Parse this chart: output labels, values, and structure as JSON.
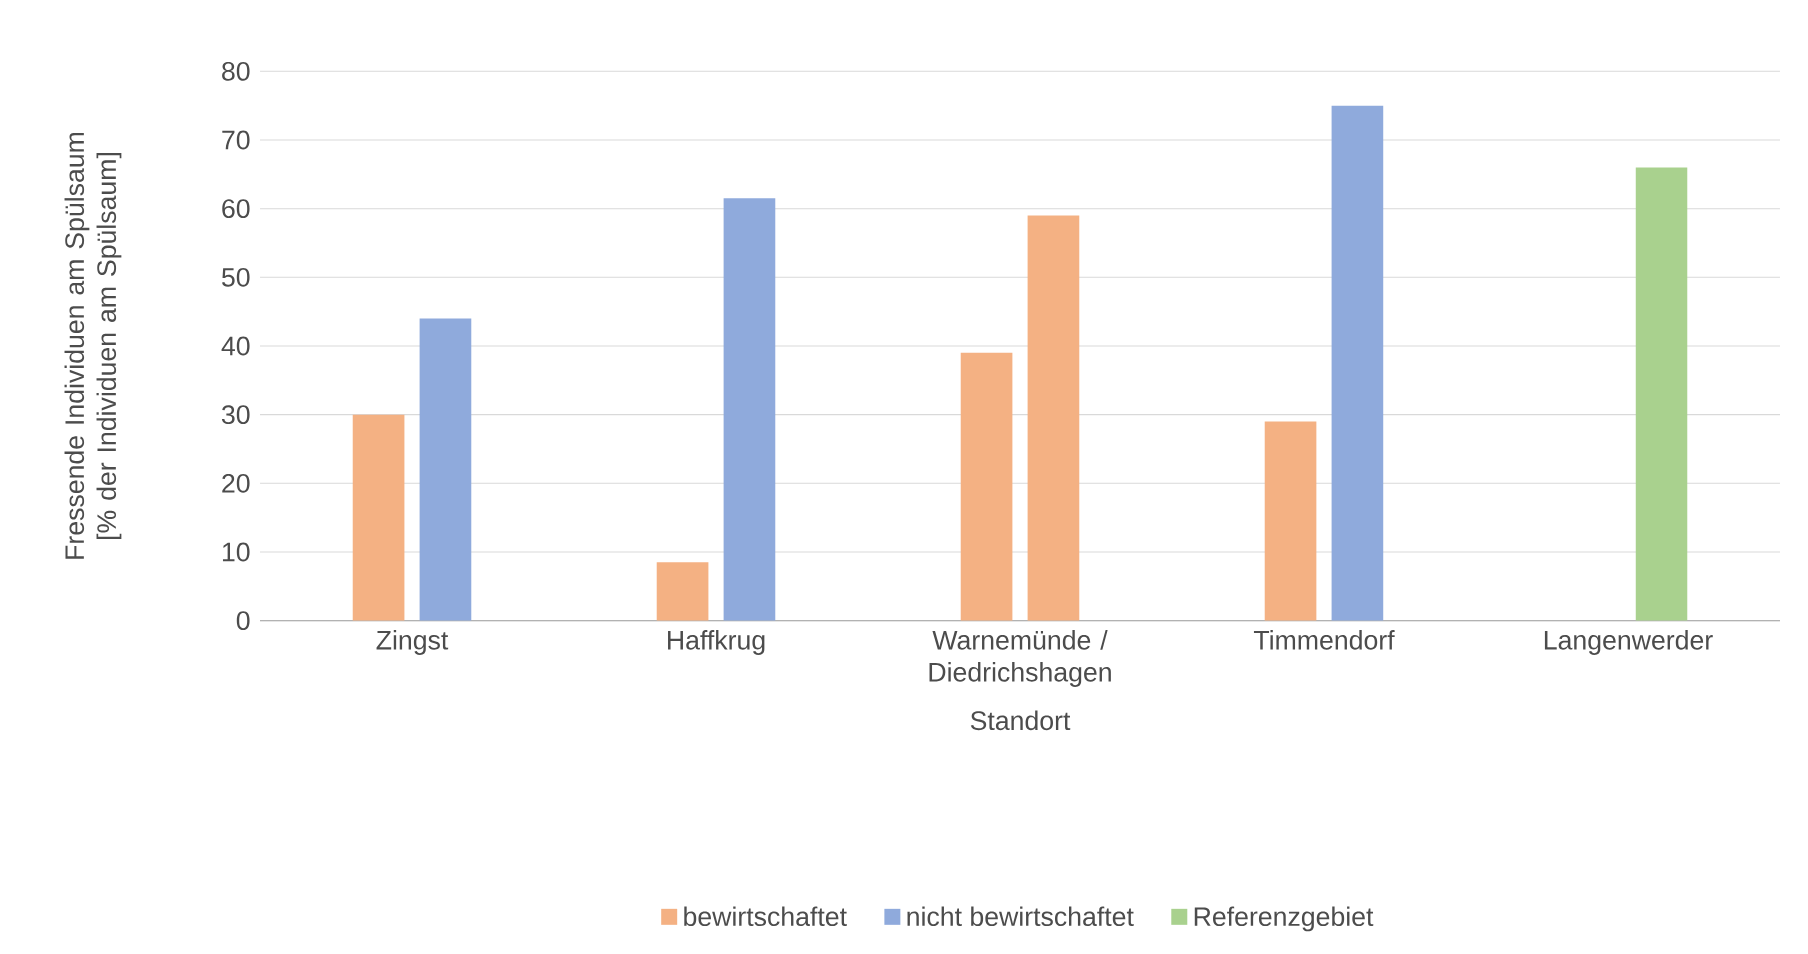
{
  "chart_data": {
    "type": "bar",
    "ylabel": "Fressende Individuen am Spülsaum [% der Individuen am Spülsaum]",
    "xlabel": "Standort",
    "categories": [
      "Zingst",
      "Haffkrug",
      "Warnemünde / Diedrichshagen",
      "Timmendorf",
      "Langenwerder"
    ],
    "series": [
      {
        "name": "bewirtschaftet",
        "color": "#f4b183",
        "values": [
          30,
          8.5,
          39,
          29,
          null
        ]
      },
      {
        "name": "nicht bewirtschaftet",
        "color": "#8faadc",
        "values": [
          44,
          61.5,
          null,
          75,
          null
        ]
      },
      {
        "color": "#f4b183",
        "values": [
          null,
          null,
          59,
          null,
          null
        ]
      },
      {
        "name": "Referenzgebiet",
        "color": "#a9d18e",
        "values": [
          null,
          null,
          null,
          null,
          66
        ]
      }
    ],
    "ylim": [
      0,
      80
    ],
    "yticks": [
      0,
      10,
      20,
      30,
      40,
      50,
      60,
      70,
      80
    ],
    "grid": "y",
    "legend": "bottom"
  }
}
